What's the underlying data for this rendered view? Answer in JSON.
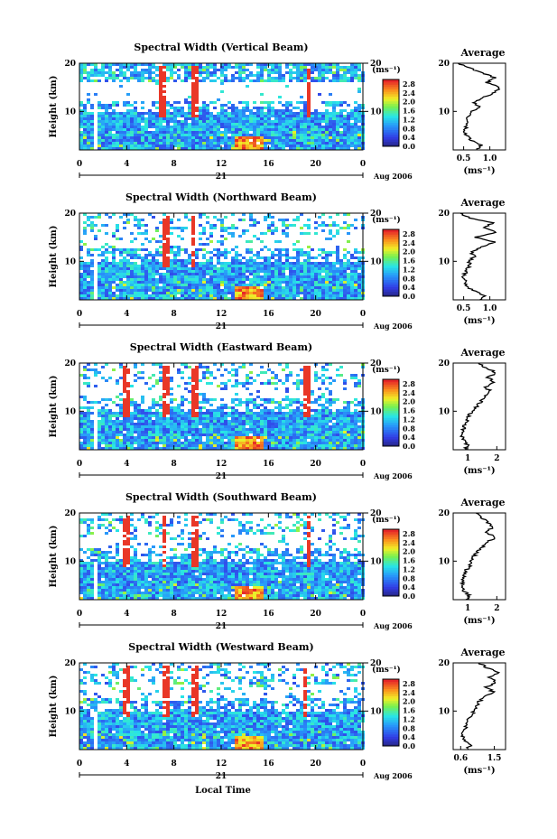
{
  "figure": {
    "x_label": "Local Time",
    "date_day": "21",
    "date_month_year": "Aug 2006",
    "y_label": "Height (km)",
    "avg_title": "Average",
    "unit_label": "(ms⁻¹)"
  },
  "chart_data": [
    {
      "type": "heatmap",
      "title": "Spectral Width (Vertical Beam)",
      "xlabel": "Local Time",
      "ylabel": "Height (km)",
      "xlim": [
        0,
        24
      ],
      "ylim": [
        2,
        20
      ],
      "x_ticks": [
        "0",
        "4",
        "8",
        "12",
        "16",
        "20",
        "0"
      ],
      "y_ticks": [
        "10",
        "20"
      ],
      "colorbar": {
        "label": "(ms⁻¹)",
        "ticks": [
          "0.0",
          "0.4",
          "0.8",
          "1.2",
          "1.6",
          "2.0",
          "2.4",
          "2.8"
        ],
        "range": [
          0,
          3.0
        ]
      }
    },
    {
      "type": "line",
      "title": "Average",
      "xlabel": "(ms⁻¹)",
      "ylabel": "Height (km)",
      "xlim": [
        0.3,
        1.3
      ],
      "ylim": [
        2,
        20
      ],
      "x_ticks": [
        "0.5",
        "1.0"
      ],
      "y_ticks": [
        "10",
        "20"
      ],
      "points": [
        [
          0.75,
          2
        ],
        [
          0.85,
          3
        ],
        [
          0.65,
          4
        ],
        [
          0.55,
          5
        ],
        [
          0.52,
          6
        ],
        [
          0.55,
          7
        ],
        [
          0.6,
          8
        ],
        [
          0.58,
          9
        ],
        [
          0.65,
          10
        ],
        [
          0.8,
          11
        ],
        [
          0.7,
          12
        ],
        [
          0.9,
          13
        ],
        [
          1.1,
          14
        ],
        [
          1.2,
          15
        ],
        [
          0.95,
          16
        ],
        [
          1.1,
          17
        ],
        [
          0.85,
          18
        ],
        [
          0.6,
          19
        ],
        [
          0.4,
          20
        ]
      ]
    },
    {
      "type": "heatmap",
      "title": "Spectral Width (Northward Beam)",
      "xlabel": "Local Time",
      "ylabel": "Height (km)",
      "xlim": [
        0,
        24
      ],
      "ylim": [
        2,
        20
      ],
      "x_ticks": [
        "0",
        "4",
        "8",
        "12",
        "16",
        "20",
        "0"
      ],
      "y_ticks": [
        "10",
        "20"
      ],
      "colorbar": {
        "label": "(ms⁻¹)",
        "ticks": [
          "0.0",
          "0.4",
          "0.8",
          "1.2",
          "1.6",
          "2.0",
          "2.4",
          "2.8"
        ],
        "range": [
          0,
          3.0
        ]
      }
    },
    {
      "type": "line",
      "title": "Average",
      "xlabel": "(ms⁻¹)",
      "ylabel": "Height (km)",
      "xlim": [
        0.3,
        1.3
      ],
      "ylim": [
        2,
        20
      ],
      "x_ticks": [
        "0.5",
        "1.0"
      ],
      "y_ticks": [
        "10",
        "20"
      ],
      "points": [
        [
          0.8,
          2
        ],
        [
          0.9,
          3
        ],
        [
          0.65,
          4
        ],
        [
          0.55,
          5
        ],
        [
          0.52,
          6
        ],
        [
          0.5,
          7
        ],
        [
          0.55,
          8
        ],
        [
          0.6,
          9
        ],
        [
          0.62,
          10
        ],
        [
          0.7,
          11
        ],
        [
          0.65,
          12
        ],
        [
          0.85,
          13
        ],
        [
          1.1,
          14
        ],
        [
          0.7,
          15
        ],
        [
          1.15,
          16
        ],
        [
          0.9,
          17
        ],
        [
          1.05,
          18
        ],
        [
          0.6,
          19
        ],
        [
          0.45,
          20
        ]
      ]
    },
    {
      "type": "heatmap",
      "title": "Spectral Width (Eastward Beam)",
      "xlabel": "Local Time",
      "ylabel": "Height (km)",
      "xlim": [
        0,
        24
      ],
      "ylim": [
        2,
        20
      ],
      "x_ticks": [
        "0",
        "4",
        "8",
        "12",
        "16",
        "20",
        "0"
      ],
      "y_ticks": [
        "10",
        "20"
      ],
      "colorbar": {
        "label": "(ms⁻¹)",
        "ticks": [
          "0.0",
          "0.4",
          "0.8",
          "1.2",
          "1.6",
          "2.0",
          "2.4",
          "2.8"
        ],
        "range": [
          0,
          3.0
        ]
      }
    },
    {
      "type": "line",
      "title": "Average",
      "xlabel": "(ms⁻¹)",
      "ylabel": "Height (km)",
      "xlim": [
        0.5,
        2.3
      ],
      "ylim": [
        2,
        20
      ],
      "x_ticks": [
        "1",
        "2"
      ],
      "y_ticks": [
        "10",
        "20"
      ],
      "points": [
        [
          0.9,
          2
        ],
        [
          1.0,
          3
        ],
        [
          0.85,
          4
        ],
        [
          0.8,
          5
        ],
        [
          0.82,
          6
        ],
        [
          0.9,
          7
        ],
        [
          1.0,
          8
        ],
        [
          1.05,
          9
        ],
        [
          1.15,
          10
        ],
        [
          1.3,
          11
        ],
        [
          1.45,
          12
        ],
        [
          1.55,
          13
        ],
        [
          1.8,
          14
        ],
        [
          1.6,
          15
        ],
        [
          1.9,
          16
        ],
        [
          1.7,
          17
        ],
        [
          2.0,
          18
        ],
        [
          1.6,
          19
        ],
        [
          1.4,
          20
        ]
      ]
    },
    {
      "type": "heatmap",
      "title": "Spectral Width (Southward Beam)",
      "xlabel": "Local Time",
      "ylabel": "Height (km)",
      "xlim": [
        0,
        24
      ],
      "ylim": [
        2,
        20
      ],
      "x_ticks": [
        "0",
        "4",
        "8",
        "12",
        "16",
        "20",
        "0"
      ],
      "y_ticks": [
        "10",
        "20"
      ],
      "colorbar": {
        "label": "(ms⁻¹)",
        "ticks": [
          "0.0",
          "0.4",
          "0.8",
          "1.2",
          "1.6",
          "2.0",
          "2.4",
          "2.8"
        ],
        "range": [
          0,
          3.0
        ]
      }
    },
    {
      "type": "line",
      "title": "Average",
      "xlabel": "(ms⁻¹)",
      "ylabel": "Height (km)",
      "xlim": [
        0.5,
        2.3
      ],
      "ylim": [
        2,
        20
      ],
      "x_ticks": [
        "1",
        "2"
      ],
      "y_ticks": [
        "10",
        "20"
      ],
      "points": [
        [
          0.95,
          2
        ],
        [
          1.05,
          3
        ],
        [
          0.85,
          4
        ],
        [
          0.8,
          5
        ],
        [
          0.82,
          6
        ],
        [
          0.9,
          7
        ],
        [
          0.95,
          8
        ],
        [
          1.05,
          9
        ],
        [
          1.1,
          10
        ],
        [
          1.2,
          11
        ],
        [
          1.35,
          12
        ],
        [
          1.5,
          13
        ],
        [
          1.7,
          14
        ],
        [
          1.95,
          15
        ],
        [
          1.6,
          16
        ],
        [
          1.85,
          17
        ],
        [
          1.7,
          18
        ],
        [
          1.5,
          19
        ],
        [
          1.35,
          20
        ]
      ]
    },
    {
      "type": "heatmap",
      "title": "Spectral Width (Westward Beam)",
      "xlabel": "Local Time",
      "ylabel": "Height (km)",
      "xlim": [
        0,
        24
      ],
      "ylim": [
        2,
        20
      ],
      "x_ticks": [
        "0",
        "4",
        "8",
        "12",
        "16",
        "20",
        "0"
      ],
      "y_ticks": [
        "10",
        "20"
      ],
      "colorbar": {
        "label": "(ms⁻¹)",
        "ticks": [
          "0.0",
          "0.4",
          "0.8",
          "1.2",
          "1.6",
          "2.0",
          "2.4",
          "2.8"
        ],
        "range": [
          0,
          3.0
        ]
      }
    },
    {
      "type": "line",
      "title": "Average",
      "xlabel": "(ms⁻¹)",
      "ylabel": "Height (km)",
      "xlim": [
        0.4,
        1.8
      ],
      "ylim": [
        2,
        20
      ],
      "x_ticks": [
        "0.6",
        "1.5"
      ],
      "y_ticks": [
        "10",
        "20"
      ],
      "points": [
        [
          0.75,
          2
        ],
        [
          0.9,
          3
        ],
        [
          0.7,
          4
        ],
        [
          0.65,
          5
        ],
        [
          0.7,
          6
        ],
        [
          0.75,
          7
        ],
        [
          0.8,
          8
        ],
        [
          0.9,
          9
        ],
        [
          0.95,
          10
        ],
        [
          1.0,
          11
        ],
        [
          1.1,
          12
        ],
        [
          1.25,
          13
        ],
        [
          1.45,
          14
        ],
        [
          1.3,
          15
        ],
        [
          1.55,
          16
        ],
        [
          1.35,
          17
        ],
        [
          1.6,
          18
        ],
        [
          1.3,
          19
        ],
        [
          1.1,
          20
        ]
      ]
    }
  ]
}
